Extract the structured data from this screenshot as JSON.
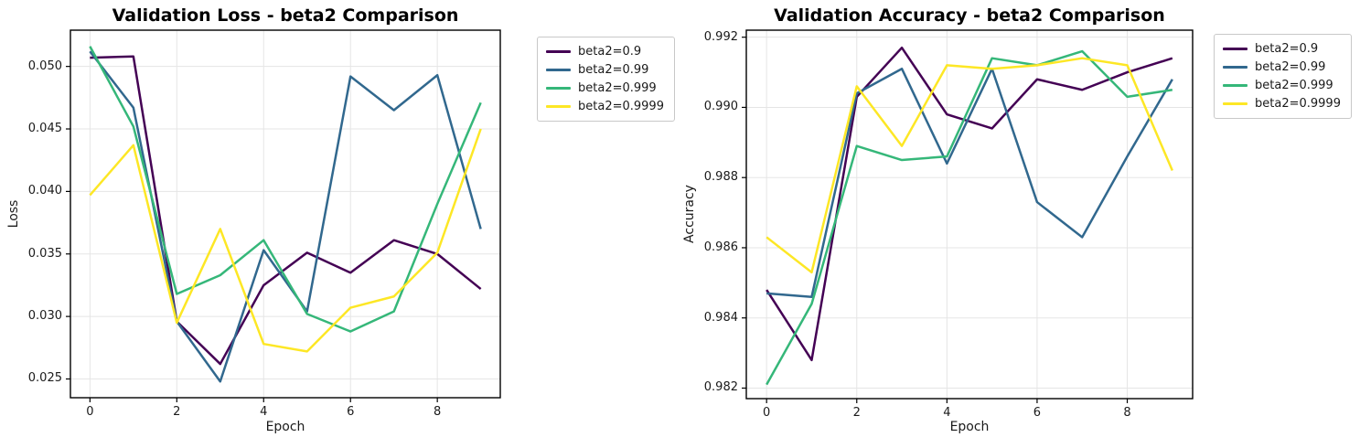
{
  "figure": {
    "background": "#ffffff",
    "grid_color": "#e5e5e5",
    "spine_color": "#000000",
    "text_color": "#1a1a1a"
  },
  "chart_data": [
    {
      "type": "line",
      "title": "Validation Loss - beta2 Comparison",
      "xlabel": "Epoch",
      "ylabel": "Loss",
      "x": [
        0,
        1,
        2,
        3,
        4,
        5,
        6,
        7,
        8,
        9
      ],
      "xlim": [
        -0.45,
        9.45
      ],
      "ylim": [
        0.0235,
        0.0529
      ],
      "grid": true,
      "legend_position": "outside-upper-right",
      "xticks": [
        {
          "value": 0,
          "label": "0"
        },
        {
          "value": 2,
          "label": "2"
        },
        {
          "value": 4,
          "label": "4"
        },
        {
          "value": 6,
          "label": "6"
        },
        {
          "value": 8,
          "label": "8"
        }
      ],
      "yticks": [
        {
          "value": 0.025,
          "label": "0.025"
        },
        {
          "value": 0.03,
          "label": "0.030"
        },
        {
          "value": 0.035,
          "label": "0.035"
        },
        {
          "value": 0.04,
          "label": "0.040"
        },
        {
          "value": 0.045,
          "label": "0.045"
        },
        {
          "value": 0.05,
          "label": "0.050"
        }
      ],
      "series": [
        {
          "label": "beta2=0.9",
          "color": "#440154",
          "values": [
            0.0507,
            0.0508,
            0.0296,
            0.0262,
            0.0325,
            0.0351,
            0.0335,
            0.0361,
            0.035,
            0.0322
          ]
        },
        {
          "label": "beta2=0.99",
          "color": "#31688e",
          "values": [
            0.0512,
            0.0467,
            0.0296,
            0.0248,
            0.0353,
            0.0304,
            0.0492,
            0.0465,
            0.0493,
            0.037
          ]
        },
        {
          "label": "beta2=0.999",
          "color": "#35b779",
          "values": [
            0.0516,
            0.0452,
            0.0318,
            0.0333,
            0.0361,
            0.0302,
            0.0288,
            0.0304,
            0.039,
            0.0471
          ]
        },
        {
          "label": "beta2=0.9999",
          "color": "#fde725",
          "values": [
            0.0397,
            0.0437,
            0.0295,
            0.037,
            0.0278,
            0.0272,
            0.0307,
            0.0316,
            0.0351,
            0.045
          ]
        }
      ]
    },
    {
      "type": "line",
      "title": "Validation Accuracy - beta2 Comparison",
      "xlabel": "Epoch",
      "ylabel": "Accuracy",
      "x": [
        0,
        1,
        2,
        3,
        4,
        5,
        6,
        7,
        8,
        9
      ],
      "xlim": [
        -0.45,
        9.45
      ],
      "ylim": [
        0.9817,
        0.9922
      ],
      "grid": true,
      "legend_position": "outside-upper-right",
      "xticks": [
        {
          "value": 0,
          "label": "0"
        },
        {
          "value": 2,
          "label": "2"
        },
        {
          "value": 4,
          "label": "4"
        },
        {
          "value": 6,
          "label": "6"
        },
        {
          "value": 8,
          "label": "8"
        }
      ],
      "yticks": [
        {
          "value": 0.982,
          "label": "0.982"
        },
        {
          "value": 0.984,
          "label": "0.984"
        },
        {
          "value": 0.986,
          "label": "0.986"
        },
        {
          "value": 0.988,
          "label": "0.988"
        },
        {
          "value": 0.99,
          "label": "0.990"
        },
        {
          "value": 0.992,
          "label": "0.992"
        }
      ],
      "series": [
        {
          "label": "beta2=0.9",
          "color": "#440154",
          "values": [
            0.9848,
            0.9828,
            0.9903,
            0.9917,
            0.9898,
            0.9894,
            0.9908,
            0.9905,
            0.991,
            0.9914
          ]
        },
        {
          "label": "beta2=0.99",
          "color": "#31688e",
          "values": [
            0.9847,
            0.9846,
            0.9904,
            0.9911,
            0.9884,
            0.9911,
            0.9873,
            0.9863,
            0.9886,
            0.9908
          ]
        },
        {
          "label": "beta2=0.999",
          "color": "#35b779",
          "values": [
            0.9821,
            0.9844,
            0.9889,
            0.9885,
            0.9886,
            0.9914,
            0.9912,
            0.9916,
            0.9903,
            0.9905
          ]
        },
        {
          "label": "beta2=0.9999",
          "color": "#fde725",
          "values": [
            0.9863,
            0.9853,
            0.9906,
            0.9889,
            0.9912,
            0.9911,
            0.9912,
            0.9914,
            0.9912,
            0.9882
          ]
        }
      ]
    }
  ]
}
